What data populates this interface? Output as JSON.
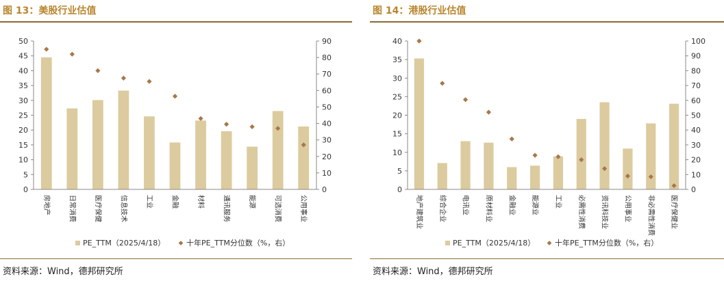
{
  "left": {
    "title": "图 13：美股行业估值",
    "source": "资料来源：Wind，德邦研究所",
    "legend_bar": "PE_TTM（2025/4/18）",
    "legend_point": "十年PE_TTM分位数（%，右）"
  },
  "right": {
    "title": "图 14：港股行业估值",
    "source": "资料来源：Wind，德邦研究所",
    "legend_bar": "PE_TTM（2025/4/18）",
    "legend_point": "十年PE_TTM分位数（%，右）"
  },
  "colors": {
    "bar": "#dccb9f",
    "point": "#a8784a",
    "accent": "#b8862d"
  },
  "chart_data": [
    {
      "type": "bar",
      "categories": [
        "房地产",
        "日常消费",
        "医疗保健",
        "信息技术",
        "工业",
        "金融",
        "材料",
        "通讯服务",
        "能源",
        "可选消费",
        "公用事业"
      ],
      "series": [
        {
          "name": "PE_TTM（2025/4/18）",
          "type": "bar",
          "axis": "left",
          "values": [
            44.5,
            27.3,
            30.1,
            33.3,
            24.6,
            15.8,
            23.2,
            19.6,
            14.4,
            26.4,
            21.2
          ]
        },
        {
          "name": "十年PE_TTM分位数（%，右）",
          "type": "scatter",
          "axis": "right",
          "values": [
            85,
            82,
            72,
            67.5,
            65.5,
            56.5,
            43,
            39.5,
            38,
            37,
            27
          ]
        }
      ],
      "ylim": [
        0,
        50
      ],
      "y2lim": [
        0,
        90
      ],
      "yticks": [
        0,
        5,
        10,
        15,
        20,
        25,
        30,
        35,
        40,
        45,
        50
      ],
      "y2ticks": [
        0,
        10,
        20,
        30,
        40,
        50,
        60,
        70,
        80,
        90
      ],
      "legend": "bottom"
    },
    {
      "type": "bar",
      "categories": [
        "地产建筑业",
        "综合企业",
        "电讯业",
        "原材料业",
        "金融业",
        "能源业",
        "工业",
        "必需性消费",
        "资讯科技业",
        "公用事业",
        "非必需性消费",
        "医疗保健业"
      ],
      "series": [
        {
          "name": "PE_TTM（2025/4/18）",
          "type": "bar",
          "axis": "left",
          "values": [
            35.3,
            7.1,
            13.0,
            12.6,
            6.0,
            6.4,
            8.9,
            19.0,
            23.5,
            11.0,
            17.8,
            23.1
          ]
        },
        {
          "name": "十年PE_TTM分位数（%，右）",
          "type": "scatter",
          "axis": "right",
          "values": [
            100,
            71.5,
            60.5,
            52,
            34,
            23,
            22,
            20,
            14,
            9,
            8.5,
            2.5
          ]
        }
      ],
      "ylim": [
        0,
        40
      ],
      "y2lim": [
        0,
        100
      ],
      "yticks": [
        0,
        5,
        10,
        15,
        20,
        25,
        30,
        35,
        40
      ],
      "y2ticks": [
        0,
        10,
        20,
        30,
        40,
        50,
        60,
        70,
        80,
        90,
        100
      ],
      "legend": "bottom"
    }
  ]
}
